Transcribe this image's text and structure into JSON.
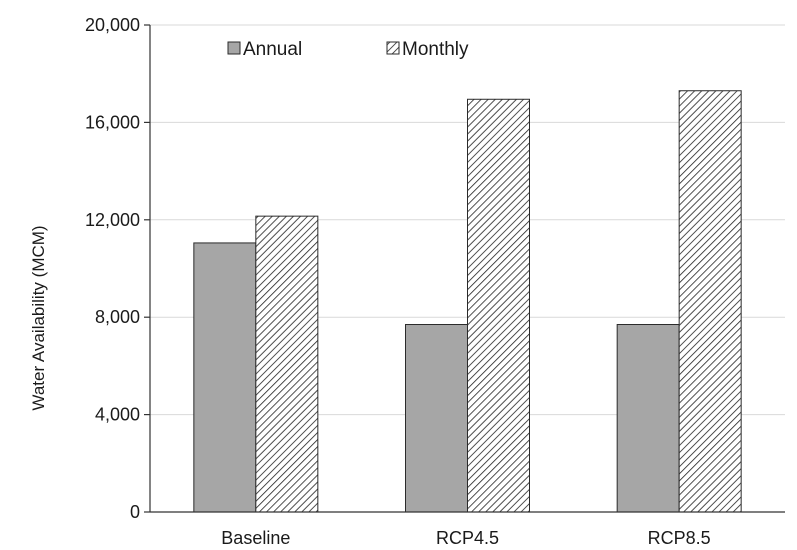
{
  "chart_data": {
    "type": "bar",
    "title": "",
    "xlabel": "",
    "ylabel": "Water Availability (MCM)",
    "categories": [
      "Baseline",
      "RCP4.5",
      "RCP8.5"
    ],
    "series": [
      {
        "name": "Annual",
        "values": [
          11050,
          7700,
          7700
        ],
        "color": "#a6a6a6",
        "pattern": "solid"
      },
      {
        "name": "Monthly",
        "values": [
          12150,
          16950,
          17300
        ],
        "color": "#ffffff",
        "pattern": "diagonal-hatch"
      }
    ],
    "ylim": [
      0,
      20000
    ],
    "yticks": [
      0,
      4000,
      8000,
      12000,
      16000,
      20000
    ],
    "ytick_labels": [
      "0",
      "4,000",
      "8,000",
      "12,000",
      "16,000",
      "20,000"
    ],
    "grid": true,
    "legend_position": "top"
  }
}
